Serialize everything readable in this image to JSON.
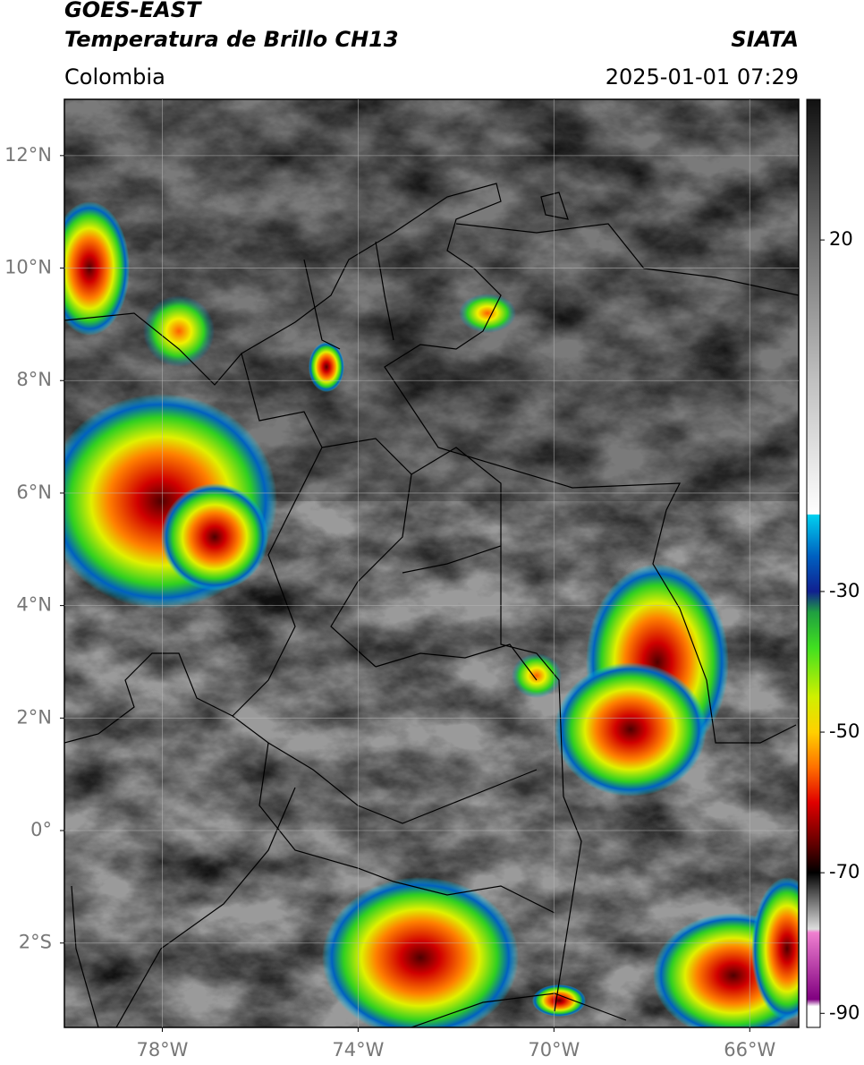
{
  "header": {
    "title": "GOES-EAST",
    "subtitle": "Temperatura de Brillo CH13",
    "source": "SIATA",
    "region": "Colombia",
    "datetime": "2025-01-01 07:29"
  },
  "map": {
    "xlim": [
      -80,
      -65
    ],
    "ylim": [
      -3.5,
      13
    ],
    "grid": true,
    "xticks": [
      {
        "value": -78,
        "label": "78°W"
      },
      {
        "value": -74,
        "label": "74°W"
      },
      {
        "value": -70,
        "label": "70°W"
      },
      {
        "value": -66,
        "label": "66°W"
      }
    ],
    "yticks": [
      {
        "value": 12,
        "label": "12°N"
      },
      {
        "value": 10,
        "label": "10°N"
      },
      {
        "value": 8,
        "label": "8°N"
      },
      {
        "value": 6,
        "label": "6°N"
      },
      {
        "value": 4,
        "label": "4°N"
      },
      {
        "value": 2,
        "label": "2°N"
      },
      {
        "value": 0,
        "label": "0°"
      },
      {
        "value": -2,
        "label": "2°S"
      }
    ]
  },
  "colorbar": {
    "clim": [
      -92,
      40
    ],
    "ticks": [
      20,
      -30,
      -50,
      -70,
      -90
    ],
    "colormap": [
      {
        "value": 40,
        "color": "#111111"
      },
      {
        "value": 20,
        "color": "#707070"
      },
      {
        "value": 0,
        "color": "#c0c0c0"
      },
      {
        "value": -19,
        "color": "#ffffff"
      },
      {
        "value": -19.1,
        "color": "#00d0f0"
      },
      {
        "value": -25,
        "color": "#0060c0"
      },
      {
        "value": -30,
        "color": "#102090"
      },
      {
        "value": -33,
        "color": "#20a040"
      },
      {
        "value": -38,
        "color": "#40e020"
      },
      {
        "value": -45,
        "color": "#d0f000"
      },
      {
        "value": -50,
        "color": "#ffd000"
      },
      {
        "value": -55,
        "color": "#ff7000"
      },
      {
        "value": -60,
        "color": "#e00000"
      },
      {
        "value": -66,
        "color": "#600000"
      },
      {
        "value": -70,
        "color": "#000000"
      },
      {
        "value": -73,
        "color": "#555555"
      },
      {
        "value": -78,
        "color": "#dddddd"
      },
      {
        "value": -78.5,
        "color": "#f080d0"
      },
      {
        "value": -88,
        "color": "#800080"
      },
      {
        "value": -89,
        "color": "#ffffff"
      },
      {
        "value": -92,
        "color": "#ffffff"
      }
    ]
  }
}
